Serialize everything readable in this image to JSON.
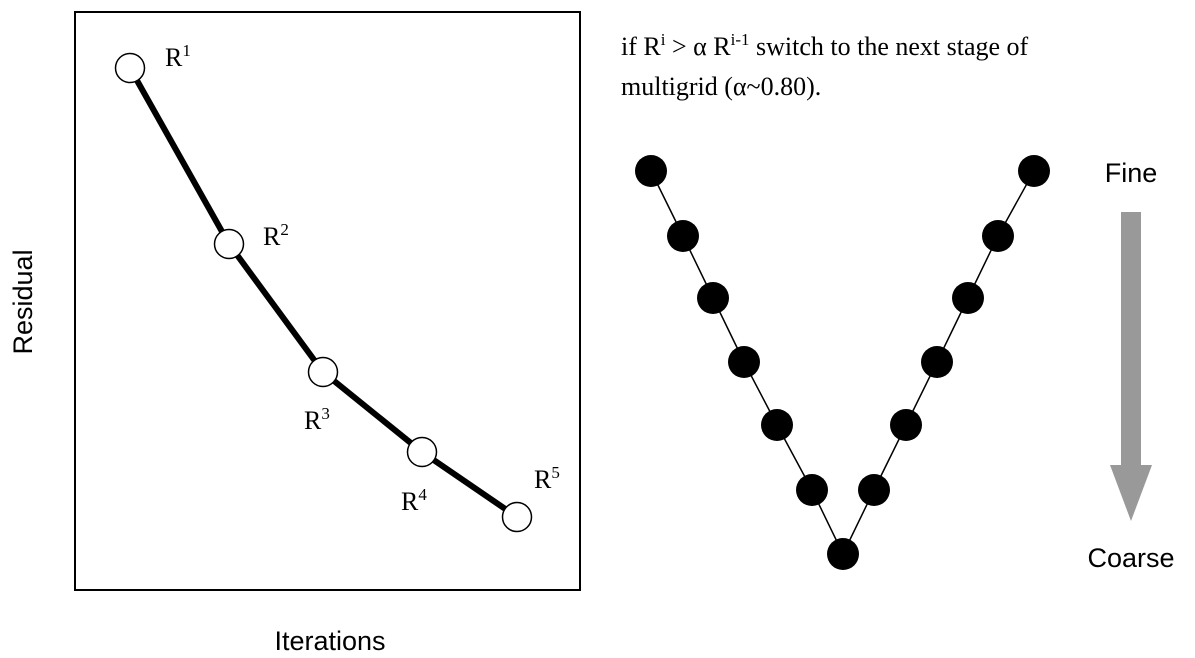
{
  "residual_plot": {
    "ylabel": "Residual",
    "xlabel": "Iterations",
    "points": [
      {
        "label_base": "R",
        "label_sup": "1"
      },
      {
        "label_base": "R",
        "label_sup": "2"
      },
      {
        "label_base": "R",
        "label_sup": "3"
      },
      {
        "label_base": "R",
        "label_sup": "4"
      },
      {
        "label_base": "R",
        "label_sup": "5"
      }
    ]
  },
  "rule": {
    "prefix": "if R",
    "sup_i": "i",
    "middle": " > α R",
    "sup_i_minus_1": "i-1",
    "suffix": " switch to the next stage of",
    "line2": "multigrid (α~0.80)."
  },
  "vcycle": {
    "node_count": 13,
    "fine_label": "Fine",
    "coarse_label": "Coarse",
    "arrow_color": "#999999",
    "node_color": "#000000"
  }
}
